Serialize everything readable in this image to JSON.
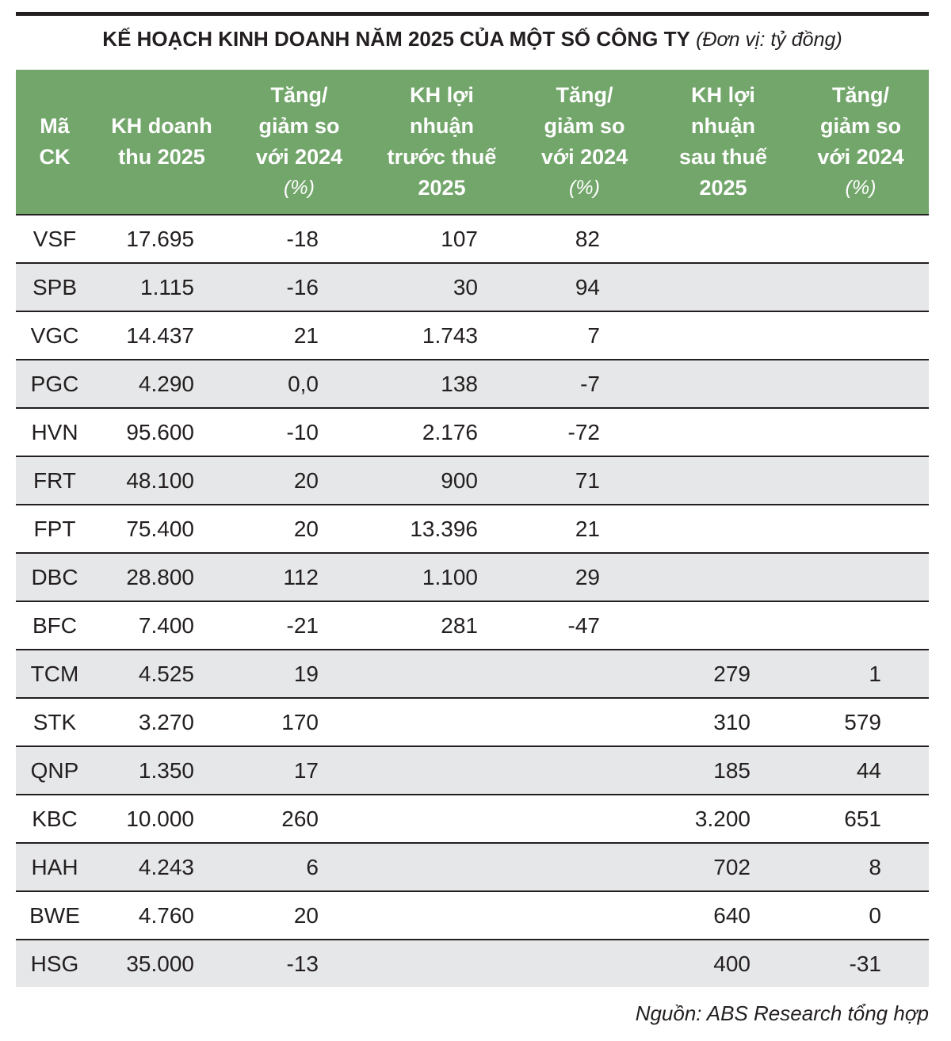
{
  "title": "KẾ HOẠCH KINH DOANH NĂM 2025 CỦA MỘT SỐ CÔNG TY",
  "unit_note": "(Đơn vị: tỷ đồng)",
  "table": {
    "header": [
      {
        "label": "Mã\nCK"
      },
      {
        "label": "KH doanh\nthu 2025"
      },
      {
        "label": "Tăng/\ngiảm so\nvới 2024",
        "unit": "(%)"
      },
      {
        "label": "KH lợi\nnhuận\ntrước thuế\n2025"
      },
      {
        "label": "Tăng/\ngiảm so\nvới 2024",
        "unit": "(%)"
      },
      {
        "label": "KH lợi\nnhuận\nsau thuế\n2025"
      },
      {
        "label": "Tăng/\ngiảm so\nvới 2024",
        "unit": "(%)"
      }
    ],
    "rows": [
      [
        "VSF",
        "17.695",
        "-18",
        "107",
        "82",
        null,
        null
      ],
      [
        "SPB",
        "1.115",
        "-16",
        "30",
        "94",
        null,
        null
      ],
      [
        "VGC",
        "14.437",
        "21",
        "1.743",
        "7",
        null,
        null
      ],
      [
        "PGC",
        "4.290",
        "0,0",
        "138",
        "-7",
        null,
        null
      ],
      [
        "HVN",
        "95.600",
        "-10",
        "2.176",
        "-72",
        null,
        null
      ],
      [
        "FRT",
        "48.100",
        "20",
        "900",
        "71",
        null,
        null
      ],
      [
        "FPT",
        "75.400",
        "20",
        "13.396",
        "21",
        null,
        null
      ],
      [
        "DBC",
        "28.800",
        "112",
        "1.100",
        "29",
        null,
        null
      ],
      [
        "BFC",
        "7.400",
        "-21",
        "281",
        "-47",
        null,
        null
      ],
      [
        "TCM",
        "4.525",
        "19",
        null,
        null,
        "279",
        "1"
      ],
      [
        "STK",
        "3.270",
        "170",
        null,
        null,
        "310",
        "579"
      ],
      [
        "QNP",
        "1.350",
        "17",
        null,
        null,
        "185",
        "44"
      ],
      [
        "KBC",
        "10.000",
        "260",
        null,
        null,
        "3.200",
        "651"
      ],
      [
        "HAH",
        "4.243",
        "6",
        null,
        null,
        "702",
        "8"
      ],
      [
        "BWE",
        "4.760",
        "20",
        null,
        null,
        "640",
        "0"
      ],
      [
        "HSG",
        "35.000",
        "-13",
        null,
        null,
        "400",
        "-31"
      ]
    ]
  },
  "source": "Nguồn: ABS Research tổng hợp"
}
